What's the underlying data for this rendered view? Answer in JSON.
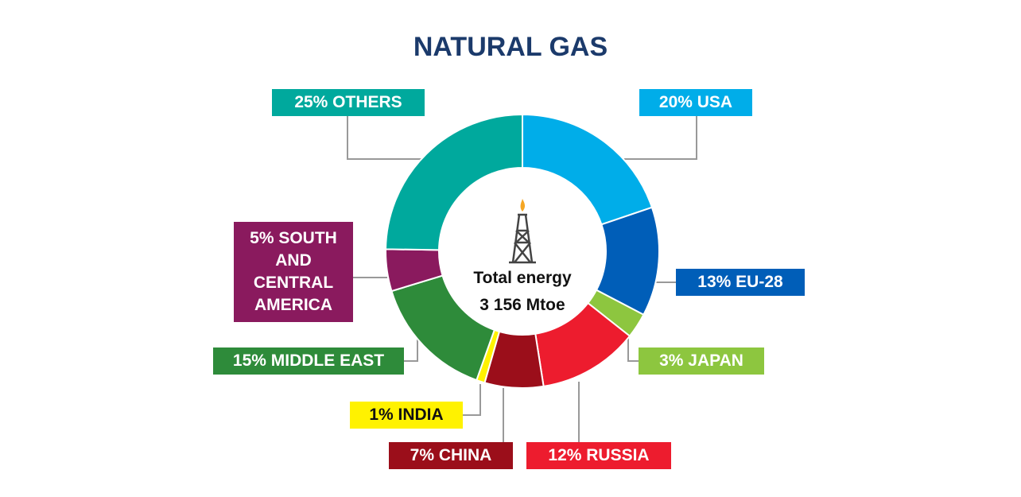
{
  "chart_data": {
    "type": "pie",
    "donut": true,
    "title": "NATURAL GAS",
    "values": [
      20,
      13,
      3,
      12,
      7,
      1,
      15,
      5,
      25
    ],
    "value_labels": [
      "20% USA",
      "13% EU-28",
      "3% JAPAN",
      "12% RUSSIA",
      "7% CHINA",
      "1% INDIA",
      "15% MIDDLE EAST",
      "5% SOUTH AND CENTRAL AMERICA",
      "25% OTHERS"
    ],
    "colors": [
      "#00ade9",
      "#005eb8",
      "#8dc63f",
      "#ed1c2e",
      "#9b0e1a",
      "#fff200",
      "#2e8b3a",
      "#8a1a5e",
      "#00a99d"
    ],
    "annotations": [
      "Total energy",
      "3 156 Mtoe"
    ]
  }
}
